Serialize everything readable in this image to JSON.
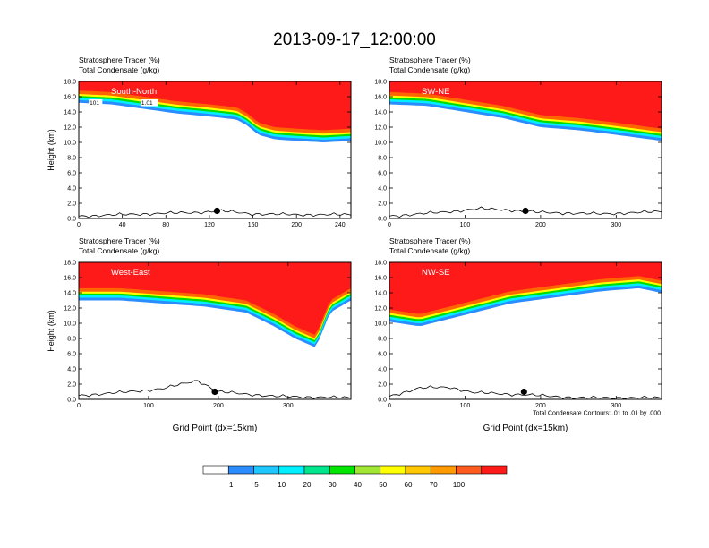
{
  "figure": {
    "title": "2013-09-17_12:00:00",
    "contour_note": "Total Condensate Contours: .01 to .01 by .000"
  },
  "colors": {
    "tracer_red": "#ff1a1a",
    "tracer_orange": "#ff6600",
    "tracer_yellow": "#ffff00",
    "tracer_green": "#00dd00",
    "tracer_cyan": "#00eeff",
    "tracer_blue": "#2a8cff",
    "contour": "#000000",
    "marker": "#000000"
  },
  "colorbar": {
    "colors": [
      "#ffffff",
      "#2a8cff",
      "#1ec8ff",
      "#00f0ff",
      "#00e68c",
      "#00e600",
      "#a0e632",
      "#ffff00",
      "#ffc800",
      "#ff9b00",
      "#ff5a1e",
      "#ff1a1a"
    ],
    "labels": [
      "1",
      "5",
      "10",
      "20",
      "30",
      "40",
      "50",
      "60",
      "70",
      "100"
    ]
  },
  "chart_data": [
    {
      "type": "heatmap",
      "panel_label": "South-North",
      "subtitle_line1": "Stratosphere Tracer   (%)",
      "subtitle_line2": "Total Condensate   (g/kg)",
      "ylabel": "Height (km)",
      "xlabel": "",
      "xlim": [
        0,
        250
      ],
      "ylim": [
        0,
        18
      ],
      "xticks": [
        "0",
        "40",
        "80",
        "120",
        "160",
        "200",
        "240"
      ],
      "yticks": [
        "0.0",
        "2.0",
        "4.0",
        "6.0",
        "8.0",
        "10.0",
        "12.0",
        "14.0",
        "16.0",
        "18.0"
      ],
      "contour_labels": [
        "101",
        "1.01"
      ],
      "tracer_boundary_km": [
        [
          0,
          15.2
        ],
        [
          30,
          15.0
        ],
        [
          60,
          14.4
        ],
        [
          90,
          13.8
        ],
        [
          120,
          13.4
        ],
        [
          145,
          13.0
        ],
        [
          155,
          12.2
        ],
        [
          165,
          11.0
        ],
        [
          180,
          10.4
        ],
        [
          200,
          10.2
        ],
        [
          225,
          10.0
        ],
        [
          250,
          10.2
        ]
      ],
      "terrain_km": [
        [
          0,
          0.3
        ],
        [
          60,
          0.6
        ],
        [
          110,
          0.8
        ],
        [
          130,
          1.0
        ],
        [
          160,
          0.6
        ],
        [
          200,
          0.5
        ],
        [
          250,
          0.5
        ]
      ],
      "marker": [
        127,
        1.0
      ]
    },
    {
      "type": "heatmap",
      "panel_label": "SW-NE",
      "subtitle_line1": "Stratosphere Tracer   (%)",
      "subtitle_line2": "Total Condensate   (g/kg)",
      "ylabel": "",
      "xlabel": "",
      "xlim": [
        0,
        360
      ],
      "ylim": [
        0,
        18
      ],
      "xticks": [
        "0",
        "100",
        "200",
        "300"
      ],
      "yticks": [
        "0.0",
        "2.0",
        "4.0",
        "6.0",
        "8.0",
        "10.0",
        "12.0",
        "14.0",
        "16.0",
        "18.0"
      ],
      "contour_labels": [],
      "tracer_boundary_km": [
        [
          0,
          15.0
        ],
        [
          50,
          14.8
        ],
        [
          100,
          14.0
        ],
        [
          150,
          13.2
        ],
        [
          200,
          12.0
        ],
        [
          250,
          11.6
        ],
        [
          300,
          11.0
        ],
        [
          360,
          10.2
        ]
      ],
      "terrain_km": [
        [
          0,
          0.3
        ],
        [
          80,
          0.9
        ],
        [
          120,
          1.3
        ],
        [
          160,
          1.1
        ],
        [
          200,
          0.8
        ],
        [
          280,
          0.6
        ],
        [
          360,
          0.9
        ]
      ],
      "marker": [
        180,
        1.0
      ]
    },
    {
      "type": "heatmap",
      "panel_label": "West-East",
      "subtitle_line1": "Stratosphere Tracer   (%)",
      "subtitle_line2": "Total Condensate   (g/kg)",
      "ylabel": "Height (km)",
      "xlabel": "Grid Point (dx=15km)",
      "xlim": [
        0,
        390
      ],
      "ylim": [
        0,
        18
      ],
      "xticks": [
        "0",
        "100",
        "200",
        "300"
      ],
      "yticks": [
        "0.0",
        "2.0",
        "4.0",
        "6.0",
        "8.0",
        "10.0",
        "12.0",
        "14.0",
        "16.0",
        "18.0"
      ],
      "contour_labels": [],
      "tracer_boundary_km": [
        [
          0,
          13.0
        ],
        [
          60,
          13.0
        ],
        [
          120,
          12.6
        ],
        [
          180,
          12.2
        ],
        [
          240,
          11.4
        ],
        [
          280,
          9.6
        ],
        [
          310,
          8.0
        ],
        [
          340,
          6.8
        ],
        [
          360,
          11.4
        ],
        [
          390,
          13.0
        ]
      ],
      "terrain_km": [
        [
          0,
          0.5
        ],
        [
          60,
          0.9
        ],
        [
          120,
          1.4
        ],
        [
          170,
          2.5
        ],
        [
          200,
          1.0
        ],
        [
          280,
          0.4
        ],
        [
          390,
          0.2
        ]
      ],
      "marker": [
        195,
        1.0
      ]
    },
    {
      "type": "heatmap",
      "panel_label": "NW-SE",
      "subtitle_line1": "Stratosphere Tracer   (%)",
      "subtitle_line2": "Total Condensate   (g/kg)",
      "ylabel": "",
      "xlabel": "Grid Point (dx=15km)",
      "xlim": [
        0,
        360
      ],
      "ylim": [
        0,
        18
      ],
      "xticks": [
        "0",
        "100",
        "200",
        "300"
      ],
      "yticks": [
        "0.0",
        "2.0",
        "4.0",
        "6.0",
        "8.0",
        "10.0",
        "12.0",
        "14.0",
        "16.0",
        "18.0"
      ],
      "contour_labels": [],
      "tracer_boundary_km": [
        [
          0,
          10.2
        ],
        [
          40,
          9.6
        ],
        [
          80,
          10.6
        ],
        [
          120,
          11.6
        ],
        [
          160,
          12.6
        ],
        [
          220,
          13.4
        ],
        [
          280,
          14.2
        ],
        [
          330,
          14.6
        ],
        [
          360,
          14.0
        ]
      ],
      "terrain_km": [
        [
          0,
          0.4
        ],
        [
          40,
          1.5
        ],
        [
          80,
          1.6
        ],
        [
          110,
          0.9
        ],
        [
          180,
          0.6
        ],
        [
          250,
          0.2
        ],
        [
          360,
          0.2
        ]
      ],
      "marker": [
        178,
        1.0
      ]
    }
  ]
}
